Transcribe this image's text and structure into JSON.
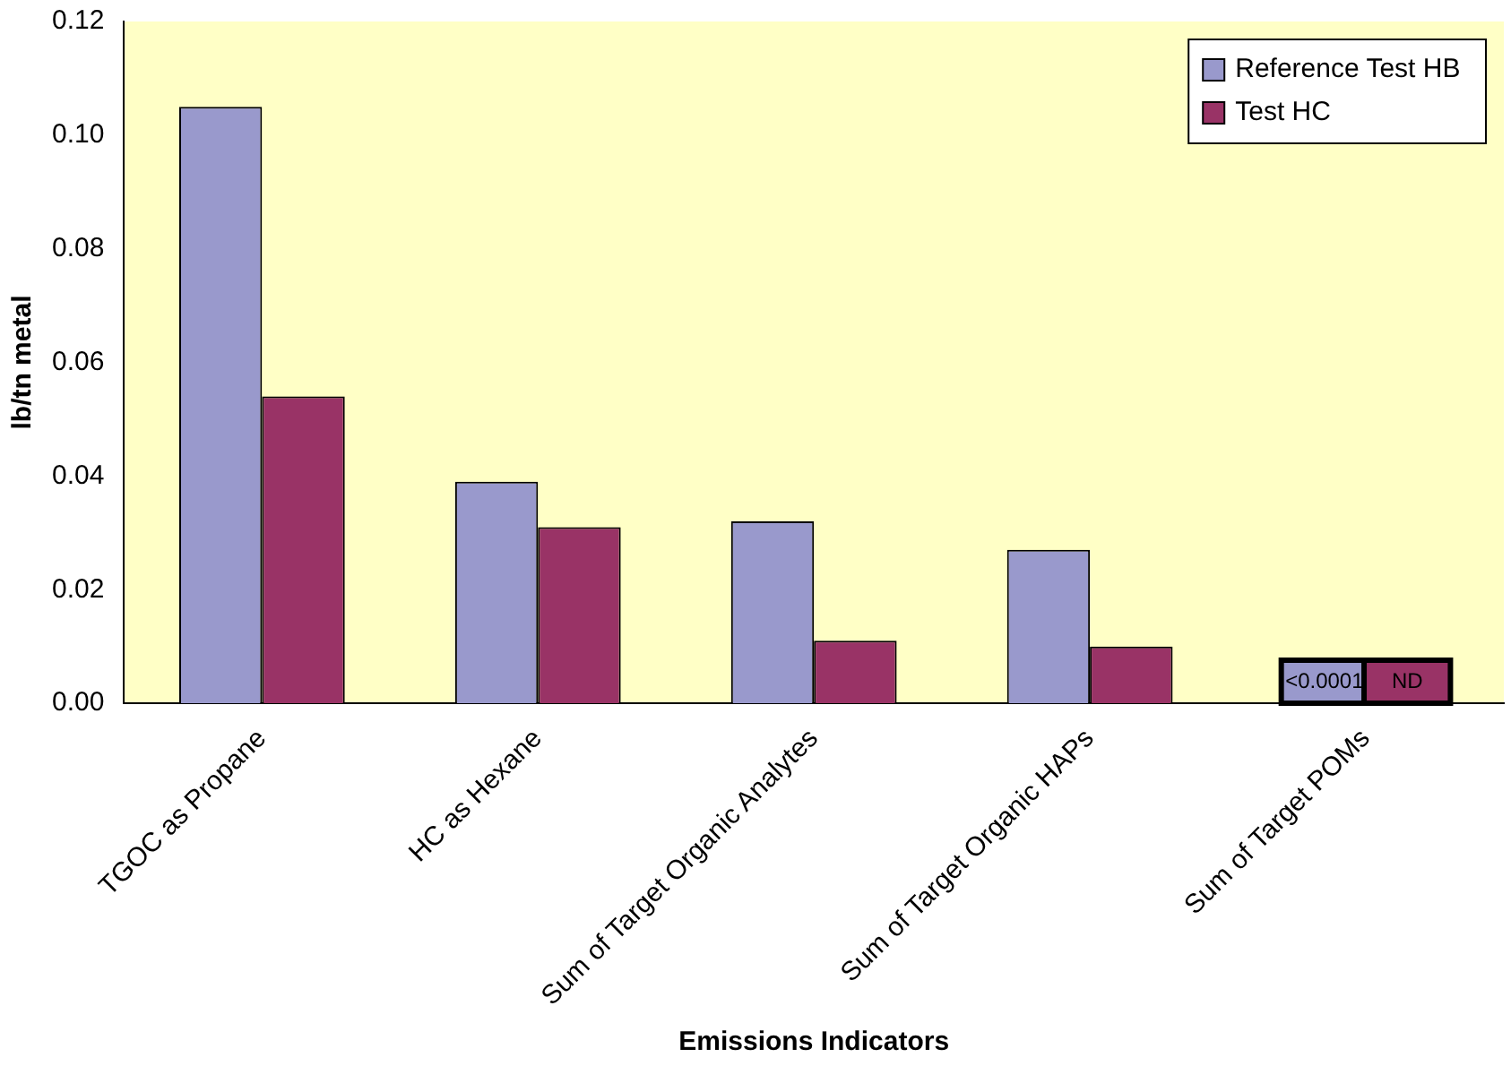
{
  "chart_data": {
    "type": "bar",
    "xlabel": "Emissions Indicators",
    "ylabel": "lb/tn metal",
    "categories": [
      "TGOC as Propane",
      "HC as Hexane",
      "Sum of Target Organic Analytes",
      "Sum of Target Organic HAPs",
      "Sum of Target POMs"
    ],
    "series": [
      {
        "name": "Reference Test HB",
        "color": "#9999cc",
        "values": [
          0.105,
          0.039,
          0.032,
          0.027,
          0
        ]
      },
      {
        "name": "Test HC",
        "color": "#993366",
        "values": [
          0.054,
          0.031,
          0.011,
          0.01,
          null
        ]
      }
    ],
    "annotations": [
      {
        "text": "<0.0001",
        "x": "Sum of Target POMs",
        "y": 0
      },
      {
        "text": "ND",
        "x": "Sum of Target POMs",
        "y": 0
      }
    ],
    "ylim": [
      0,
      0.12
    ],
    "yticks": [
      {
        "value": 0,
        "label": "0.00"
      },
      {
        "value": 0.02,
        "label": "0.02"
      },
      {
        "value": 0.04,
        "label": "0.04"
      },
      {
        "value": 0.06,
        "label": "0.06"
      },
      {
        "value": 0.08,
        "label": "0.08"
      },
      {
        "value": 0.1,
        "label": "0.10"
      },
      {
        "value": 0.12,
        "label": "0.12"
      }
    ],
    "grid": false,
    "legend": "top right"
  }
}
